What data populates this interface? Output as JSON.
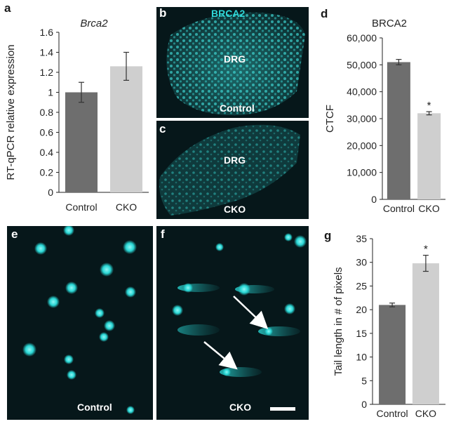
{
  "panels": {
    "a": "a",
    "b": "b",
    "c": "c",
    "d": "d",
    "e": "e",
    "f": "f",
    "g": "g"
  },
  "micro_labels": {
    "b_stain": "BRCA2",
    "b_region": "DRG",
    "b_condition": "Control",
    "c_region": "DRG",
    "c_condition": "CKO",
    "e_condition": "Control",
    "f_condition": "CKO"
  },
  "colors": {
    "control_bar": "#6e6e6e",
    "cko_bar": "#cfcfcf",
    "stain": "#28d4d4",
    "micro_bg": "#06171a"
  },
  "chart_data": [
    {
      "id": "a",
      "type": "bar",
      "title": "Brca2",
      "ylabel": "RT-qPCR relative expression",
      "xlabel": "",
      "categories": [
        "Control",
        "CKO"
      ],
      "values": [
        1.0,
        1.26
      ],
      "errors": [
        0.1,
        0.14
      ],
      "significance": [
        "",
        ""
      ],
      "ylim": [
        0,
        1.6
      ],
      "yticks": [
        0,
        0.2,
        0.4,
        0.6,
        0.8,
        1,
        1.2,
        1.4,
        1.6
      ],
      "ytick_labels": [
        "0",
        "0.2",
        "0.4",
        "0.6",
        "0.8",
        "1",
        "1.2",
        "1.4",
        "1.6"
      ]
    },
    {
      "id": "d",
      "type": "bar",
      "title": "BRCA2",
      "ylabel": "CTCF",
      "xlabel": "",
      "categories": [
        "Control",
        "CKO"
      ],
      "values": [
        51000,
        32000
      ],
      "errors": [
        1000,
        600
      ],
      "significance": [
        "",
        "*"
      ],
      "ylim": [
        0,
        60000
      ],
      "yticks": [
        0,
        10000,
        20000,
        30000,
        40000,
        50000,
        60000
      ],
      "ytick_labels": [
        "0",
        "10,000",
        "20,000",
        "30,000",
        "40,000",
        "50,000",
        "60,000"
      ]
    },
    {
      "id": "g",
      "type": "bar",
      "title": "",
      "ylabel": "Tail length in # of pixels",
      "xlabel": "",
      "categories": [
        "Control",
        "CKO"
      ],
      "values": [
        21,
        29.8
      ],
      "errors": [
        0.4,
        1.7
      ],
      "significance": [
        "",
        "*"
      ],
      "ylim": [
        0,
        35
      ],
      "yticks": [
        0,
        5,
        10,
        15,
        20,
        25,
        30,
        35
      ],
      "ytick_labels": [
        "0",
        "5",
        "10",
        "15",
        "20",
        "25",
        "30",
        "35"
      ]
    }
  ]
}
